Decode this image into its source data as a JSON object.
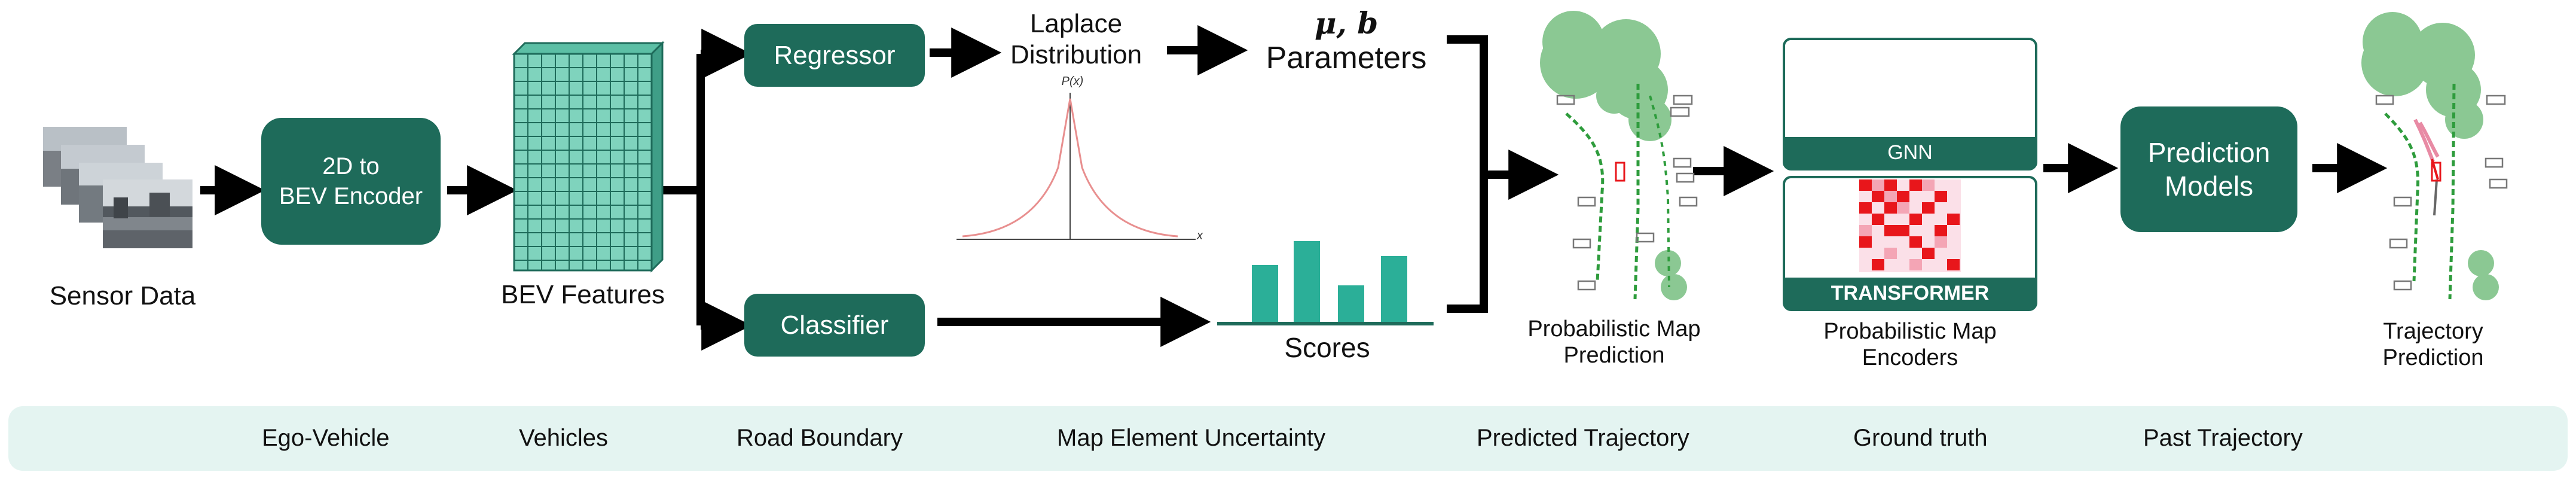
{
  "colors": {
    "box_green": "#1e6b5a",
    "grid_teal": "#7fd3bd",
    "bar_teal": "#2baf98",
    "laplace_red": "#e88f8f",
    "legend_bg": "#e4f4f1",
    "ego_red": "#e8161b",
    "vehicle_gray": "#777777",
    "road_green": "#2e9c3c",
    "uncertainty_green": "#2e9c3c",
    "predicted_pink": "#e88aa4",
    "ground_truth_red": "#e8161b",
    "past_gray": "#666666"
  },
  "labels": {
    "sensor_data": "Sensor Data",
    "encoder_line1": "2D to",
    "encoder_line2": "BEV Encoder",
    "bev_features": "BEV Features",
    "regressor": "Regressor",
    "classifier": "Classifier",
    "laplace_line1": "Laplace",
    "laplace_line2": "Distribution",
    "params_symbols": "μ, b",
    "params_word": "Parameters",
    "scores": "Scores",
    "laplace_ylabel": "P(x)",
    "laplace_xlabel": "x",
    "prob_map_line1": "Probabilistic Map",
    "prob_map_line2": "Prediction",
    "gnn": "GNN",
    "transformer": "TRANSFORMER",
    "encoders_line1": "Probabilistic Map",
    "encoders_line2": "Encoders",
    "prediction_line1": "Prediction",
    "prediction_line2": "Models",
    "trajectory_line1": "Trajectory",
    "trajectory_line2": "Prediction"
  },
  "legend": {
    "ego_vehicle": "Ego-Vehicle",
    "vehicles": "Vehicles",
    "road_boundary": "Road Boundary",
    "map_uncertainty": "Map Element Uncertainty",
    "predicted_trajectory": "Predicted Trajectory",
    "ground_truth": "Ground truth",
    "past_trajectory": "Past Trajectory"
  }
}
